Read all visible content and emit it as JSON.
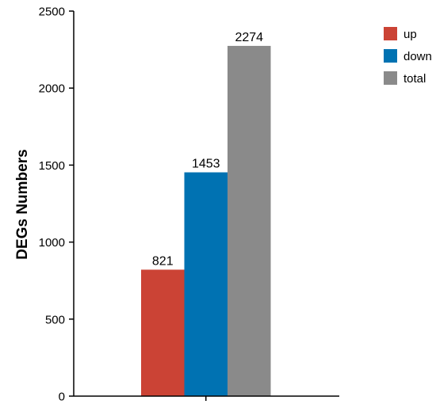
{
  "chart_data": {
    "type": "bar",
    "title": "",
    "xlabel": "",
    "ylabel": "DEGs Numbers",
    "ylim": [
      0,
      2500
    ],
    "yticks": [
      0,
      500,
      1000,
      1500,
      2000,
      2500
    ],
    "grid": false,
    "legend_position": "top-right",
    "series": [
      {
        "name": "up",
        "value": 821,
        "label": "821",
        "color": "#cb4335"
      },
      {
        "name": "down",
        "value": 1453,
        "label": "1453",
        "color": "#0072b2"
      },
      {
        "name": "total",
        "value": 2274,
        "label": "2274",
        "color": "#8a8a8a"
      }
    ]
  }
}
